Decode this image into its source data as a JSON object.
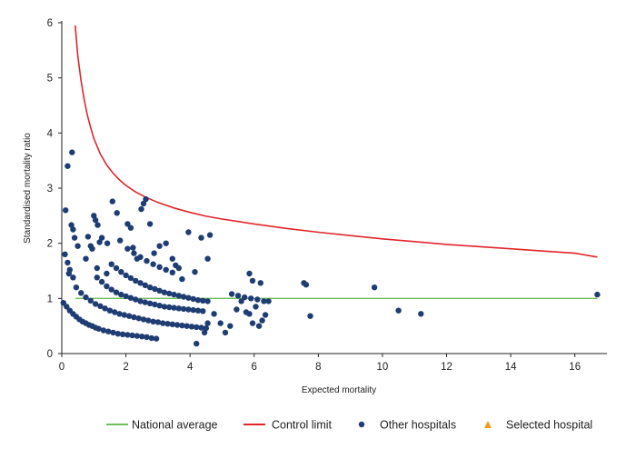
{
  "chart_data": {
    "type": "scatter",
    "title": "",
    "xlabel": "Expected mortality",
    "ylabel": "Standardised mortality ratio",
    "xlim": [
      0,
      17
    ],
    "ylim": [
      0,
      6
    ],
    "x_ticks": [
      0,
      2,
      4,
      6,
      8,
      10,
      12,
      14,
      16
    ],
    "y_ticks": [
      0,
      1,
      2,
      3,
      4,
      5,
      6
    ],
    "grid": false,
    "legend_position": "bottom-right",
    "colors": {
      "national_average": "#6cbf5a",
      "control_limit": "#e0262b",
      "other_hospitals": "#1f3d73",
      "selected_hospital": "#f59a23"
    },
    "legend": [
      {
        "key": "national_average",
        "label": "National average",
        "marker": "line"
      },
      {
        "key": "control_limit",
        "label": "Control limit",
        "marker": "line"
      },
      {
        "key": "other_hospitals",
        "label": "Other hospitals",
        "marker": "circle"
      },
      {
        "key": "selected_hospital",
        "label": "Selected hospital",
        "marker": "triangle"
      }
    ],
    "national_average": 1.0,
    "control_limit": {
      "x": [
        0.42,
        0.5,
        0.6,
        0.7,
        0.8,
        0.9,
        1.0,
        1.2,
        1.4,
        1.6,
        1.8,
        2.0,
        2.3,
        2.6,
        3.0,
        3.5,
        4.0,
        4.5,
        5.0,
        6.0,
        7.0,
        8.0,
        9.0,
        10.0,
        11.0,
        12.0,
        13.0,
        14.0,
        15.0,
        16.0,
        16.7
      ],
      "y": [
        5.95,
        5.4,
        4.95,
        4.6,
        4.32,
        4.1,
        3.9,
        3.62,
        3.42,
        3.27,
        3.15,
        3.05,
        2.93,
        2.84,
        2.74,
        2.64,
        2.56,
        2.49,
        2.44,
        2.35,
        2.27,
        2.2,
        2.14,
        2.08,
        2.03,
        1.98,
        1.94,
        1.9,
        1.86,
        1.82,
        1.75
      ]
    },
    "other_hospitals": {
      "x": [
        0.18,
        0.32,
        0.12,
        0.18,
        0.25,
        0.3,
        0.35,
        0.4,
        0.5,
        0.1,
        0.22,
        0.35,
        0.75,
        0.82,
        0.9,
        1.0,
        1.05,
        1.12,
        1.18,
        1.25,
        1.42,
        0.95,
        1.1,
        1.4,
        1.58,
        1.72,
        1.82,
        2.05,
        2.15,
        2.22,
        2.35,
        2.48,
        2.55,
        2.62,
        2.75,
        2.88,
        3.05,
        3.25,
        3.45,
        3.55,
        3.65,
        3.75,
        3.95,
        4.15,
        4.35,
        4.55,
        4.62,
        0.05,
        0.15,
        0.25,
        0.35,
        0.45,
        0.55,
        0.65,
        0.75,
        0.85,
        0.95,
        1.05,
        1.15,
        1.3,
        1.45,
        1.6,
        1.75,
        1.9,
        2.05,
        2.2,
        2.35,
        2.5,
        2.65,
        2.8,
        2.95,
        0.45,
        0.6,
        0.75,
        0.9,
        1.05,
        1.2,
        1.35,
        1.5,
        1.65,
        1.8,
        1.95,
        2.1,
        2.25,
        2.4,
        2.55,
        2.7,
        2.85,
        3.0,
        3.15,
        3.3,
        3.45,
        3.6,
        3.75,
        3.9,
        4.05,
        4.2,
        4.35,
        4.5,
        1.1,
        1.25,
        1.4,
        1.55,
        1.7,
        1.85,
        2.0,
        2.15,
        2.3,
        2.45,
        2.6,
        2.75,
        2.9,
        3.05,
        3.2,
        3.35,
        3.5,
        3.65,
        3.8,
        3.95,
        4.1,
        4.25,
        4.4,
        1.55,
        1.7,
        1.85,
        2.0,
        2.15,
        2.3,
        2.45,
        2.6,
        2.75,
        2.9,
        3.05,
        3.2,
        3.35,
        3.5,
        3.65,
        3.8,
        3.95,
        4.1,
        4.25,
        4.4,
        4.55,
        2.05,
        2.25,
        2.45,
        2.65,
        2.85,
        3.05,
        3.25,
        3.45,
        4.55,
        4.75,
        4.95,
        5.1,
        5.25,
        5.45,
        5.6,
        5.75,
        5.85,
        5.95,
        6.05,
        6.15,
        6.25,
        6.35,
        6.45,
        5.3,
        5.5,
        5.7,
        5.9,
        6.1,
        6.3,
        5.85,
        5.95,
        6.2,
        4.45,
        4.2,
        7.55,
        7.62,
        7.75,
        9.75,
        10.5,
        11.2,
        16.7
      ],
      "y": [
        3.4,
        3.65,
        2.6,
        1.65,
        1.52,
        2.33,
        2.25,
        2.1,
        1.95,
        1.8,
        1.45,
        1.38,
        1.72,
        2.12,
        1.95,
        2.5,
        2.42,
        2.33,
        2.02,
        2.1,
        2.0,
        1.9,
        1.55,
        1.45,
        2.76,
        2.55,
        2.05,
        2.35,
        2.28,
        1.92,
        1.72,
        2.62,
        2.72,
        2.8,
        2.35,
        1.82,
        1.95,
        2.0,
        1.72,
        1.6,
        1.55,
        1.35,
        2.2,
        1.48,
        2.1,
        1.72,
        2.15,
        0.92,
        0.85,
        0.78,
        0.72,
        0.67,
        0.62,
        0.58,
        0.55,
        0.52,
        0.5,
        0.47,
        0.45,
        0.42,
        0.4,
        0.38,
        0.36,
        0.35,
        0.34,
        0.33,
        0.32,
        0.31,
        0.3,
        0.28,
        0.27,
        1.2,
        1.1,
        1.02,
        0.96,
        0.9,
        0.86,
        0.82,
        0.78,
        0.75,
        0.72,
        0.7,
        0.68,
        0.66,
        0.64,
        0.62,
        0.6,
        0.58,
        0.57,
        0.55,
        0.54,
        0.53,
        0.52,
        0.51,
        0.5,
        0.49,
        0.48,
        0.47,
        0.46,
        1.38,
        1.3,
        1.22,
        1.16,
        1.11,
        1.07,
        1.04,
        1.01,
        0.98,
        0.95,
        0.93,
        0.91,
        0.89,
        0.87,
        0.85,
        0.84,
        0.83,
        0.82,
        0.81,
        0.8,
        0.79,
        0.78,
        0.77,
        1.62,
        1.55,
        1.48,
        1.42,
        1.37,
        1.32,
        1.28,
        1.24,
        1.2,
        1.17,
        1.14,
        1.11,
        1.09,
        1.07,
        1.05,
        1.03,
        1.01,
        0.99,
        0.97,
        0.96,
        0.95,
        1.9,
        1.82,
        1.75,
        1.68,
        1.62,
        1.57,
        1.52,
        1.47,
        0.55,
        0.72,
        0.55,
        0.38,
        0.5,
        0.8,
        0.95,
        0.75,
        0.72,
        0.55,
        0.85,
        0.5,
        0.6,
        0.7,
        0.95,
        1.08,
        1.05,
        1.02,
        1.0,
        0.98,
        0.95,
        1.45,
        1.32,
        1.28,
        0.38,
        0.18,
        1.28,
        1.25,
        0.68,
        1.2,
        0.78,
        0.72,
        1.07
      ]
    },
    "selected_hospital": null
  }
}
